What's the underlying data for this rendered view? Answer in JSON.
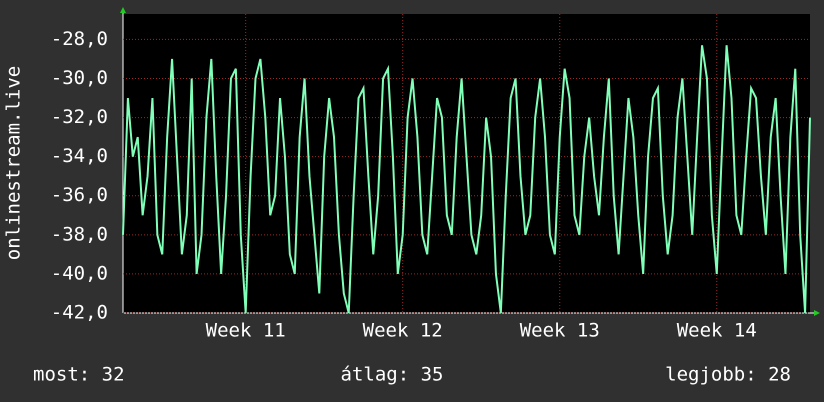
{
  "chart_data": {
    "type": "line",
    "y_label": "onlinestream.live",
    "color": "#80ffb8",
    "categories": [
      null,
      null,
      null,
      null,
      null,
      null,
      null,
      null,
      null,
      null,
      null,
      null,
      null,
      null,
      null,
      null,
      null,
      null,
      null,
      null,
      null,
      null,
      null,
      null,
      null,
      "Week 11",
      null,
      null,
      null,
      null,
      null,
      null,
      null,
      null,
      null,
      null,
      null,
      null,
      null,
      null,
      null,
      null,
      null,
      null,
      null,
      null,
      null,
      null,
      null,
      null,
      null,
      null,
      null,
      null,
      null,
      null,
      null,
      "Week 12",
      null,
      null,
      null,
      null,
      null,
      null,
      null,
      null,
      null,
      null,
      null,
      null,
      null,
      null,
      null,
      null,
      null,
      null,
      null,
      null,
      null,
      null,
      null,
      null,
      null,
      null,
      null,
      null,
      null,
      null,
      null,
      "Week 13",
      null,
      null,
      null,
      null,
      null,
      null,
      null,
      null,
      null,
      null,
      null,
      null,
      null,
      null,
      null,
      null,
      null,
      null,
      null,
      null,
      null,
      null,
      null,
      null,
      null,
      null,
      null,
      null,
      null,
      null,
      null,
      "Week 14",
      null,
      null,
      null,
      null,
      null,
      null,
      null,
      null,
      null,
      null,
      null,
      null,
      null,
      null,
      null,
      null,
      null,
      null,
      null
    ],
    "values": [
      -38,
      -31,
      -34,
      -33,
      -37,
      -35,
      -31,
      -38,
      -39,
      -33,
      -29,
      -34,
      -39,
      -37,
      -30,
      -40,
      -38,
      -32,
      -29,
      -35,
      -40,
      -36,
      -30,
      -29.5,
      -38,
      -42,
      -35,
      -30,
      -29,
      -32,
      -37,
      -36,
      -31,
      -34,
      -39,
      -40,
      -33,
      -30,
      -35,
      -38,
      -41,
      -34,
      -31,
      -33,
      -38,
      -41,
      -42,
      -36,
      -31,
      -30.5,
      -35,
      -39,
      -36,
      -30,
      -29.5,
      -34,
      -40,
      -38,
      -32,
      -30,
      -33,
      -38,
      -39,
      -35,
      -31,
      -32,
      -37,
      -38,
      -33,
      -30,
      -34,
      -38,
      -39,
      -37,
      -32,
      -34,
      -40,
      -42,
      -36,
      -31,
      -30,
      -35,
      -38,
      -37,
      -32,
      -30,
      -33,
      -38,
      -39,
      -33,
      -29.5,
      -31,
      -37,
      -38,
      -34,
      -32,
      -35,
      -37,
      -33,
      -30,
      -36,
      -39,
      -35,
      -31,
      -33,
      -37,
      -40,
      -34,
      -31,
      -30.5,
      -36,
      -39,
      -37,
      -32,
      -30,
      -34,
      -38,
      -33,
      -28.3,
      -30,
      -37,
      -40,
      -34,
      -28.3,
      -31,
      -37,
      -38,
      -34,
      -30.5,
      -31,
      -35,
      -38,
      -33,
      -31,
      -36,
      -40,
      -33,
      -29.5,
      -38,
      -42,
      -32
    ],
    "ylim": [
      -42,
      -26.7
    ],
    "yticks": [
      {
        "value": -42,
        "label": "-42,0"
      },
      {
        "value": -40,
        "label": "-40,0"
      },
      {
        "value": -38,
        "label": "-38,0"
      },
      {
        "value": -36,
        "label": "-36,0"
      },
      {
        "value": -34,
        "label": "-34,0"
      },
      {
        "value": -32,
        "label": "-32,0"
      },
      {
        "value": -30,
        "label": "-30,0"
      },
      {
        "value": -28,
        "label": "-28,0"
      }
    ],
    "grid": true,
    "footer": [
      "most: 32",
      "átlag: 35",
      "legjobb: 28"
    ]
  }
}
